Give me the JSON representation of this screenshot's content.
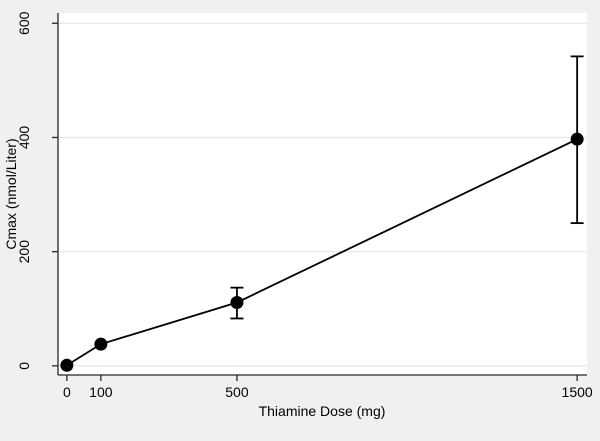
{
  "figure": {
    "outer_background": "#f0f0f0",
    "plot_background": "#ffffff",
    "grid_color": "#e8e8e8",
    "axis_color": "#262626",
    "series_color": "#000000",
    "text_color": "#000000"
  },
  "chart_data": {
    "type": "line",
    "subtype": "connected-scatter-with-error-bars",
    "title": "",
    "xlabel": "Thiamine Dose (mg)",
    "ylabel": "Cmax (nmol/Liter)",
    "x": [
      0,
      100,
      500,
      1500
    ],
    "series": [
      {
        "name": "Cmax",
        "values": [
          1,
          38,
          111,
          397
        ],
        "err_low": [
          null,
          null,
          83,
          250
        ],
        "err_high": [
          null,
          null,
          137,
          542
        ]
      }
    ],
    "xticks": [
      0,
      100,
      500,
      1500
    ],
    "yticks": [
      0,
      200,
      400,
      600
    ],
    "xlim": [
      -26,
      1529
    ],
    "ylim": [
      -16,
      618
    ],
    "grid": "horizontal",
    "legend": "none",
    "marker": "filled-circle",
    "marker_size_px": 13
  }
}
